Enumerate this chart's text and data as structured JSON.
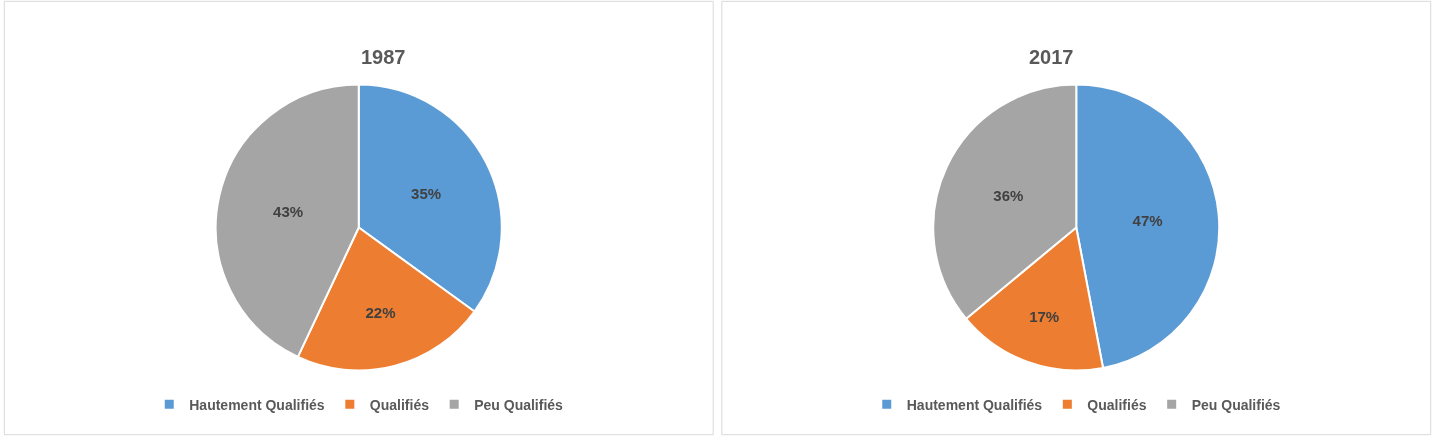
{
  "chart_data": [
    {
      "type": "pie",
      "title": "1987",
      "categories": [
        "Hautement Qualifiés",
        "Qualifiés",
        "Peu Qualifiés"
      ],
      "values": [
        35,
        22,
        43
      ],
      "value_labels": [
        "35%",
        "22%",
        "43%"
      ],
      "colors": [
        "#5b9bd5",
        "#ed7d31",
        "#a5a5a5"
      ],
      "legend": "bottom"
    },
    {
      "type": "pie",
      "title": "2017",
      "categories": [
        "Hautement Qualifiés",
        "Qualifiés",
        "Peu Qualifiés"
      ],
      "values": [
        47,
        17,
        36
      ],
      "value_labels": [
        "47%",
        "17%",
        "36%"
      ],
      "colors": [
        "#5b9bd5",
        "#ed7d31",
        "#a5a5a5"
      ],
      "legend": "bottom"
    }
  ]
}
